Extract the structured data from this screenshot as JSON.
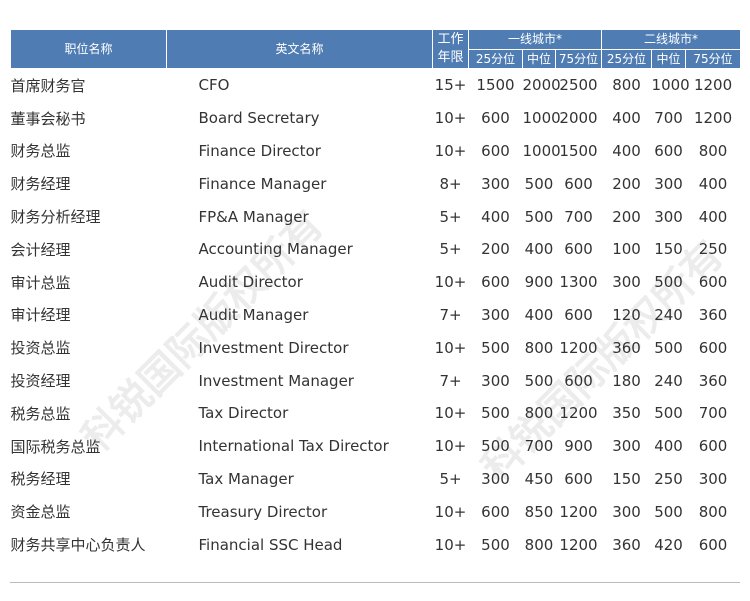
{
  "headers": {
    "title_cn": "职位名称",
    "title_en": "英文名称",
    "years": "工作年限",
    "tier1": "一线城市*",
    "tier2": "二线城市*",
    "p25": "25分位",
    "mid": "中位",
    "p75": "75分位"
  },
  "watermark": "科锐国际版权所有",
  "rows": [
    [
      "首席财务官",
      "CFO",
      "15+",
      "1500",
      "2000",
      "2500",
      "800",
      "1000",
      "1200"
    ],
    [
      "董事会秘书",
      "Board Secretary",
      "10+",
      "600",
      "1000",
      "2000",
      "400",
      "700",
      "1200"
    ],
    [
      "财务总监",
      "Finance Director",
      "10+",
      "600",
      "1000",
      "1500",
      "400",
      "600",
      "800"
    ],
    [
      "财务经理",
      "Finance Manager",
      "8+",
      "300",
      "500",
      "600",
      "200",
      "300",
      "400"
    ],
    [
      "财务分析经理",
      "FP&A Manager",
      "5+",
      "400",
      "500",
      "700",
      "200",
      "300",
      "400"
    ],
    [
      "会计经理",
      "Accounting Manager",
      "5+",
      "200",
      "400",
      "600",
      "100",
      "150",
      "250"
    ],
    [
      "审计总监",
      "Audit Director",
      "10+",
      "600",
      "900",
      "1300",
      "300",
      "500",
      "600"
    ],
    [
      "审计经理",
      "Audit Manager",
      "7+",
      "300",
      "400",
      "600",
      "120",
      "240",
      "360"
    ],
    [
      "投资总监",
      "Investment Director",
      "10+",
      "500",
      "800",
      "1200",
      "360",
      "500",
      "600"
    ],
    [
      "投资经理",
      "Investment Manager",
      "7+",
      "300",
      "500",
      "600",
      "180",
      "240",
      "360"
    ],
    [
      "税务总监",
      "Tax Director",
      "10+",
      "500",
      "800",
      "1200",
      "350",
      "500",
      "700"
    ],
    [
      "国际税务总监",
      "International Tax Director",
      "10+",
      "500",
      "700",
      "900",
      "300",
      "400",
      "600"
    ],
    [
      "税务经理",
      "Tax Manager",
      "5+",
      "300",
      "450",
      "600",
      "150",
      "250",
      "300"
    ],
    [
      "资金总监",
      "Treasury Director",
      "10+",
      "600",
      "850",
      "1200",
      "300",
      "500",
      "800"
    ],
    [
      "财务共享中心负责人",
      "Financial SSC Head",
      "10+",
      "500",
      "800",
      "1200",
      "360",
      "420",
      "600"
    ]
  ]
}
